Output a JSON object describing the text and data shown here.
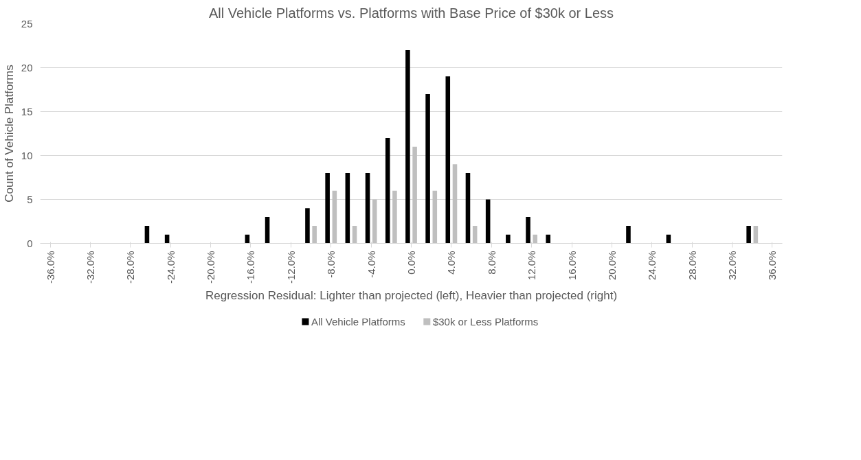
{
  "chart_data": {
    "type": "bar",
    "title": "All Vehicle Platforms vs. Platforms with Base Price of $30k or Less",
    "xlabel": "Regression Residual: Lighter than projected (left), Heavier than projected (right)",
    "ylabel": "Count of Vehicle Platforms",
    "x": [
      -36,
      -34,
      -32,
      -30,
      -28,
      -26,
      -24,
      -22,
      -20,
      -18,
      -16,
      -14,
      -12,
      -10,
      -8,
      -6,
      -4,
      -2,
      0,
      2,
      4,
      6,
      8,
      10,
      12,
      14,
      16,
      18,
      20,
      22,
      24,
      26,
      28,
      30,
      32,
      34,
      36
    ],
    "series": [
      {
        "name": "All Vehicle Platforms",
        "color": "#000000",
        "values": [
          0,
          0,
          0,
          0,
          0,
          2,
          1,
          0,
          0,
          0,
          1,
          3,
          0,
          4,
          8,
          8,
          8,
          12,
          22,
          17,
          19,
          8,
          5,
          1,
          3,
          1,
          0,
          0,
          0,
          2,
          0,
          1,
          0,
          0,
          0,
          2,
          0
        ]
      },
      {
        "name": "$30k or Less Platforms",
        "color": "#bfbfbf",
        "values": [
          0,
          0,
          0,
          0,
          0,
          0,
          0,
          0,
          0,
          0,
          0,
          0,
          0,
          2,
          6,
          2,
          5,
          6,
          11,
          6,
          9,
          2,
          0,
          0,
          1,
          0,
          0,
          0,
          0,
          0,
          0,
          0,
          0,
          0,
          0,
          2,
          0
        ]
      }
    ],
    "xlim": [
      -37,
      37
    ],
    "xticks": [
      {
        "value": -36,
        "label": "-36.0%"
      },
      {
        "value": -32,
        "label": "-32.0%"
      },
      {
        "value": -28,
        "label": "-28.0%"
      },
      {
        "value": -24,
        "label": "-24.0%"
      },
      {
        "value": -20,
        "label": "-20.0%"
      },
      {
        "value": -16,
        "label": "-16.0%"
      },
      {
        "value": -12,
        "label": "-12.0%"
      },
      {
        "value": -8,
        "label": "-8.0%"
      },
      {
        "value": -4,
        "label": "-4.0%"
      },
      {
        "value": 0,
        "label": "0.0%"
      },
      {
        "value": 4,
        "label": "4.0%"
      },
      {
        "value": 8,
        "label": "8.0%"
      },
      {
        "value": 12,
        "label": "12.0%"
      },
      {
        "value": 16,
        "label": "16.0%"
      },
      {
        "value": 20,
        "label": "20.0%"
      },
      {
        "value": 24,
        "label": "24.0%"
      },
      {
        "value": 28,
        "label": "28.0%"
      },
      {
        "value": 32,
        "label": "32.0%"
      },
      {
        "value": 36,
        "label": "36.0%"
      }
    ],
    "ylim": [
      0,
      25
    ],
    "yticks": [
      0,
      5,
      10,
      15,
      20,
      25
    ],
    "grid": "y",
    "legend": "bottom"
  }
}
